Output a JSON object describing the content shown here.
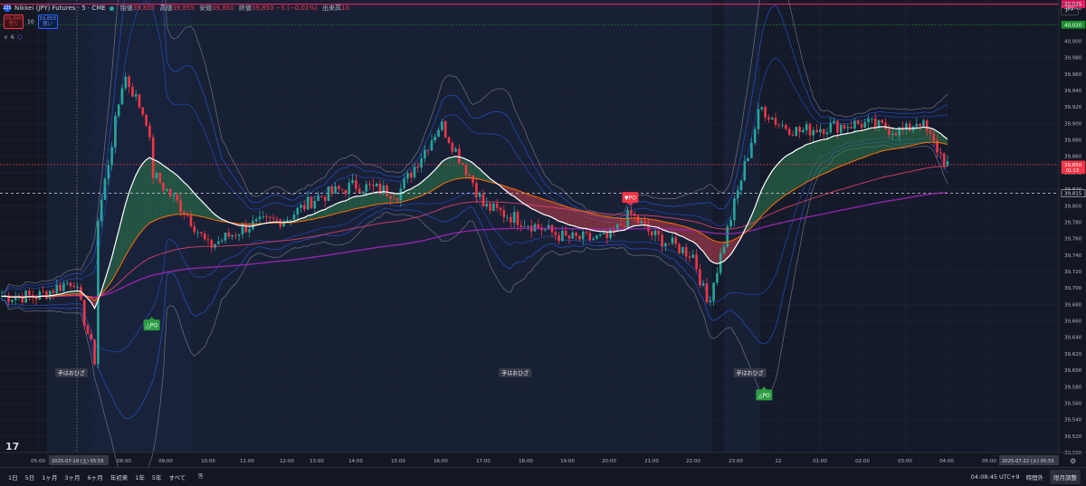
{
  "header": {
    "logo_text": "225",
    "symbol": "Nikkei (JPY) Futures · 5 · CME",
    "ohlc": [
      {
        "label": "始値",
        "value": "39,855"
      },
      {
        "label": "高値",
        "value": "39,855"
      },
      {
        "label": "安値",
        "value": "39,850"
      },
      {
        "label": "終値",
        "value": "39,850"
      },
      {
        "label": "",
        "value": "−5 (−0.01%)"
      },
      {
        "label": "出来高",
        "value": "10"
      }
    ],
    "sell": {
      "price": "39,845",
      "label": "売り"
    },
    "spread": "10",
    "buy": {
      "price": "39,855",
      "label": "買い"
    },
    "indicator_count": "6"
  },
  "currency": "JPY",
  "chart_data": {
    "type": "candlestick",
    "symbol": "Nikkei (JPY) Futures",
    "interval": "5",
    "x_ticks": [
      "05:00",
      "08:00",
      "09:00",
      "10:00",
      "11:00",
      "12:00",
      "13:00",
      "14:00",
      "15:00",
      "16:00",
      "17:00",
      "18:00",
      "19:00",
      "20:00",
      "21:00",
      "22:00",
      "23:00",
      "22",
      "01:00",
      "02:00",
      "03:00",
      "04:00",
      "05:00"
    ],
    "y_ticks": [
      "39,500",
      "39,520",
      "39,540",
      "39,560",
      "39,580",
      "39,600",
      "39,620",
      "39,640",
      "39,660",
      "39,680",
      "39,700",
      "39,720",
      "39,740",
      "39,760",
      "39,780",
      "39,800",
      "39,820",
      "39,840",
      "39,860",
      "39,880",
      "39,900",
      "39,920",
      "39,940",
      "39,960",
      "39,980",
      "40,000",
      "40,020",
      "40,040"
    ],
    "ylim": [
      39500,
      40050
    ],
    "price_labels": [
      {
        "value": "40,045",
        "color": "#e91e63"
      },
      {
        "value": "40,020",
        "color": "#1b8e2f"
      },
      {
        "value": "39,850",
        "sub": "01:15",
        "color": "#f23645"
      },
      {
        "value": "39,815",
        "color": "#d1d4dc"
      }
    ],
    "horizontal_lines": [
      {
        "value": 40045,
        "color": "#e91e63",
        "style": "solid"
      },
      {
        "value": 40020,
        "color": "#1b8e2f",
        "style": "dotted"
      },
      {
        "value": 39815,
        "color": "#d1d4dc",
        "style": "dashed"
      },
      {
        "value": 39850,
        "color": "#f23645",
        "style": "dotted"
      }
    ],
    "date_labels": [
      {
        "text": "2025-07-19 (土)",
        "time": "05:55"
      },
      {
        "text": "2025-07-22 (火)",
        "time": "05:55"
      }
    ],
    "signals": [
      {
        "text": "△PO",
        "type": "buy",
        "time": "08:40",
        "price": 39655
      },
      {
        "text": "▼PO",
        "type": "sell",
        "time": "20:30",
        "price": 39810
      },
      {
        "text": "△PO",
        "type": "buy",
        "time": "23:40",
        "price": 39570
      }
    ],
    "annotations": [
      {
        "text": "手はおひざ",
        "time": "06:10",
        "price": 39597
      },
      {
        "text": "手はおひざ",
        "time": "17:45",
        "price": 39597
      },
      {
        "text": "手はおひざ",
        "time": "23:20",
        "price": 39597
      }
    ],
    "price_path": [
      {
        "t": "05:00",
        "p": 39690
      },
      {
        "t": "06:15",
        "p": 39710
      },
      {
        "t": "07:00",
        "p": 39610
      },
      {
        "t": "07:05",
        "p": 39780
      },
      {
        "t": "08:00",
        "p": 39960
      },
      {
        "t": "08:35",
        "p": 39900
      },
      {
        "t": "08:40",
        "p": 39840
      },
      {
        "t": "09:30",
        "p": 39790
      },
      {
        "t": "10:00",
        "p": 39750
      },
      {
        "t": "11:00",
        "p": 39775
      },
      {
        "t": "12:00",
        "p": 39785
      },
      {
        "t": "13:00",
        "p": 39810
      },
      {
        "t": "14:00",
        "p": 39825
      },
      {
        "t": "15:00",
        "p": 39815
      },
      {
        "t": "16:00",
        "p": 39900
      },
      {
        "t": "16:45",
        "p": 39830
      },
      {
        "t": "17:00",
        "p": 39800
      },
      {
        "t": "18:00",
        "p": 39780
      },
      {
        "t": "19:00",
        "p": 39760
      },
      {
        "t": "20:00",
        "p": 39760
      },
      {
        "t": "20:30",
        "p": 39790
      },
      {
        "t": "21:00",
        "p": 39765
      },
      {
        "t": "22:00",
        "p": 39740
      },
      {
        "t": "22:20",
        "p": 39680
      },
      {
        "t": "22:45",
        "p": 39760
      },
      {
        "t": "23:10",
        "p": 39840
      },
      {
        "t": "23:35",
        "p": 39920
      },
      {
        "t": "00:00",
        "p": 39900
      },
      {
        "t": "00:30",
        "p": 39890
      },
      {
        "t": "01:00",
        "p": 39895
      },
      {
        "t": "02:00",
        "p": 39900
      },
      {
        "t": "03:00",
        "p": 39890
      },
      {
        "t": "03:20",
        "p": 39905
      },
      {
        "t": "04:00",
        "p": 39850
      }
    ]
  },
  "bottom": {
    "ranges": [
      "1日",
      "5日",
      "1ヶ月",
      "3ヶ月",
      "6ヶ月",
      "年初来",
      "1年",
      "5年",
      "すべて"
    ],
    "clock": "04:08:45 UTC+9",
    "session": "時間外",
    "adjust": "限月調整"
  },
  "colors": {
    "up": "#26a69a",
    "down": "#f23645",
    "bg": "#131722",
    "ema": "#ffffff",
    "orange": "#ff6d00",
    "purple": "#9c27b0",
    "band": "#2962ff"
  }
}
